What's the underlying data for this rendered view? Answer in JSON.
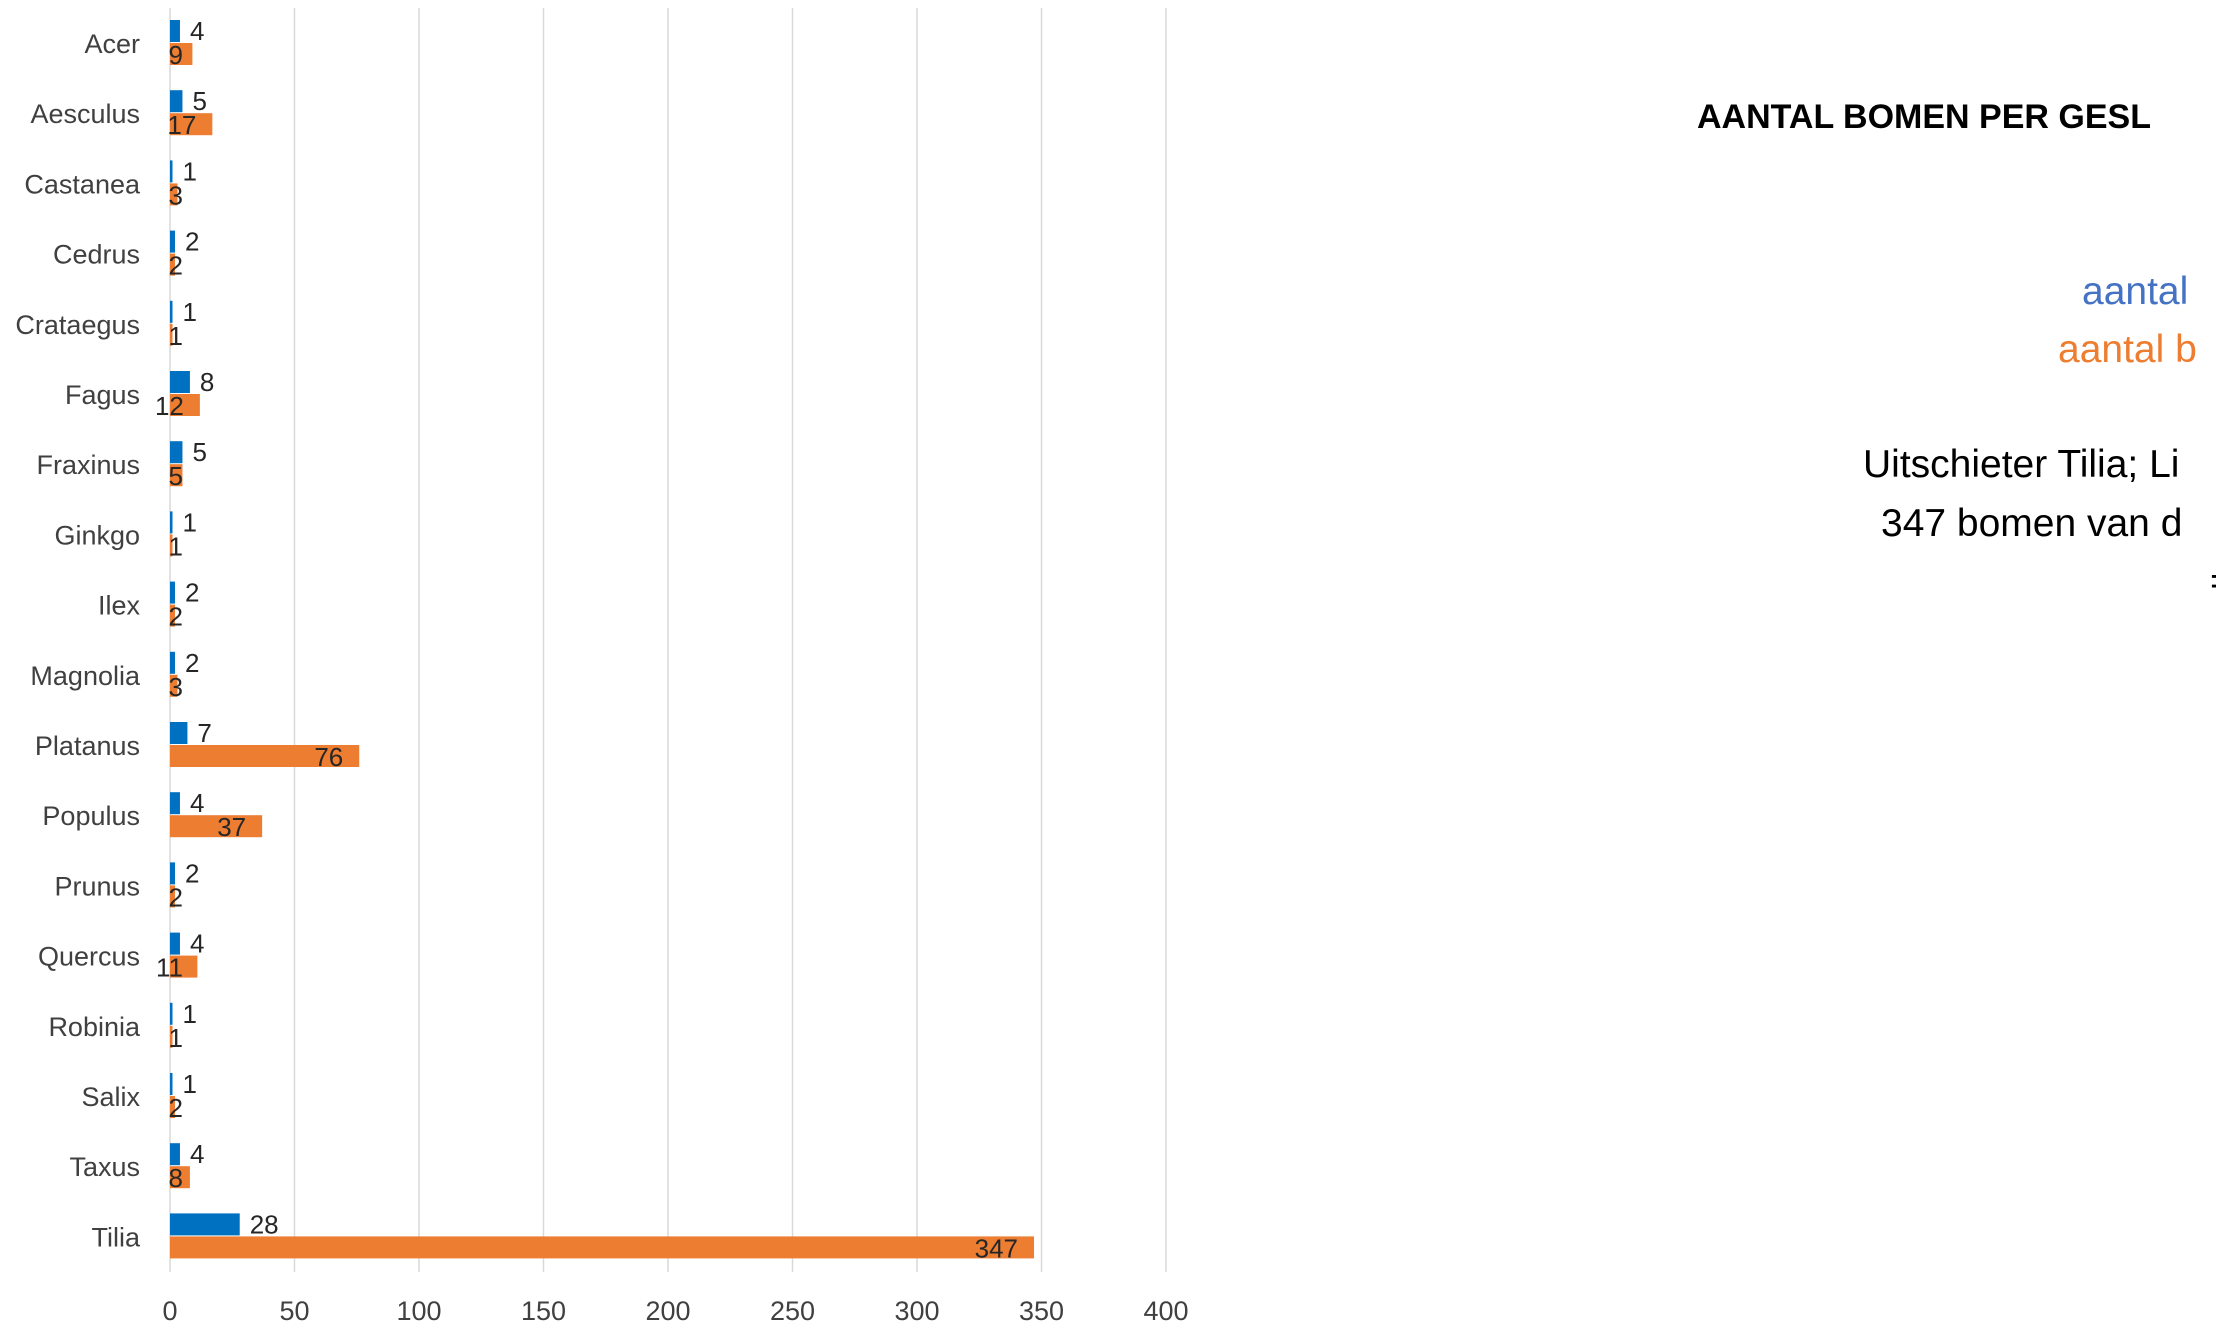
{
  "colors": {
    "series_a": "#0070C0",
    "series_b": "#ED7D31",
    "grid": "#D9D9D9",
    "annot_blue": "#4472C4",
    "annot_orange": "#ED7D31"
  },
  "annotations": {
    "title": "AANTAL BOMEN PER GESL",
    "blue_text": "aantal",
    "orange_text": "aantal b",
    "note_line1": "Uitschieter Tilia; Li",
    "note_line2": "347 bomen van d",
    "note_line3": "="
  },
  "chart_data": {
    "type": "bar",
    "orientation": "horizontal",
    "categories": [
      "Acer",
      "Aesculus",
      "Castanea",
      "Cedrus",
      "Crataegus",
      "Fagus",
      "Fraxinus",
      "Ginkgo",
      "Ilex",
      "Magnolia",
      "Platanus",
      "Populus",
      "Prunus",
      "Quercus",
      "Robinia",
      "Salix",
      "Taxus",
      "Tilia"
    ],
    "series": [
      {
        "values": [
          4,
          5,
          1,
          2,
          1,
          8,
          5,
          1,
          2,
          2,
          7,
          4,
          2,
          4,
          1,
          1,
          4,
          28
        ]
      },
      {
        "values": [
          9,
          17,
          3,
          2,
          1,
          12,
          5,
          1,
          2,
          3,
          76,
          37,
          2,
          11,
          1,
          2,
          8,
          347
        ]
      }
    ],
    "xlim": [
      0,
      400
    ],
    "xticks": [
      "0",
      "50",
      "100",
      "150",
      "200",
      "250",
      "300",
      "350",
      "400"
    ],
    "grid": "vertical",
    "legend": "none"
  }
}
